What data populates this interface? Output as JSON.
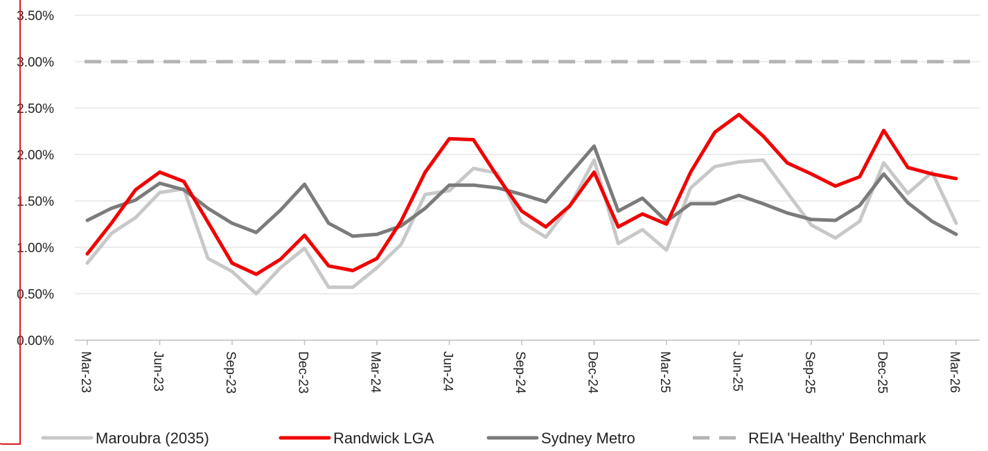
{
  "chart_data": {
    "type": "line",
    "title": "",
    "xlabel": "",
    "ylabel": "",
    "ylim": [
      0,
      0.035
    ],
    "y_tick_format": "percent_2dp",
    "y_ticks": [
      0,
      0.005,
      0.01,
      0.015,
      0.02,
      0.025,
      0.03,
      0.035
    ],
    "y_tick_labels": [
      "0.00%",
      "0.50%",
      "1.00%",
      "1.50%",
      "2.00%",
      "2.50%",
      "3.00%",
      "3.50%"
    ],
    "gridlines": true,
    "legend_position": "bottom",
    "categories": [
      "Mar-23",
      "Apr-23",
      "May-23",
      "Jun-23",
      "Jul-23",
      "Aug-23",
      "Sep-23",
      "Oct-23",
      "Nov-23",
      "Dec-23",
      "Jan-24",
      "Feb-24",
      "Mar-24",
      "Apr-24",
      "May-24",
      "Jun-24",
      "Jul-24",
      "Aug-24",
      "Sep-24",
      "Oct-24",
      "Nov-24",
      "Dec-24",
      "Jan-25",
      "Feb-25",
      "Mar-25",
      "Apr-25",
      "May-25",
      "Jun-25",
      "Jul-25",
      "Aug-25",
      "Sep-25",
      "Oct-25",
      "Nov-25",
      "Dec-25",
      "Jan-26",
      "Feb-26",
      "Mar-26"
    ],
    "x_tick_labels": [
      "Mar-23",
      "Jun-23",
      "Sep-23",
      "Dec-23",
      "Mar-24",
      "Jun-24",
      "Sep-24",
      "Dec-24",
      "Mar-25",
      "Jun-25",
      "Sep-25",
      "Dec-25",
      "Mar-26"
    ],
    "series": [
      {
        "name": "Maroubra (2035)",
        "color": "#c8c8c8",
        "style": "solid",
        "values": [
          0.0083,
          0.0115,
          0.0132,
          0.0159,
          0.0163,
          0.0088,
          0.0074,
          0.005,
          0.0078,
          0.0099,
          0.0057,
          0.0057,
          0.0078,
          0.0103,
          0.0157,
          0.0161,
          0.0185,
          0.018,
          0.0127,
          0.0111,
          0.0145,
          0.0194,
          0.0104,
          0.0119,
          0.0097,
          0.0164,
          0.0187,
          0.0192,
          0.0194,
          0.0159,
          0.0124,
          0.011,
          0.0128,
          0.0191,
          0.0158,
          0.0181,
          0.0126
        ]
      },
      {
        "name": "Randwick LGA",
        "color": "#f00000",
        "style": "solid",
        "values": [
          0.0093,
          0.0126,
          0.0162,
          0.0181,
          0.0171,
          0.0127,
          0.0083,
          0.0071,
          0.0087,
          0.0113,
          0.008,
          0.0075,
          0.0088,
          0.0128,
          0.0181,
          0.0217,
          0.0216,
          0.0176,
          0.0139,
          0.0122,
          0.0145,
          0.0181,
          0.0122,
          0.0136,
          0.0125,
          0.0181,
          0.0224,
          0.0243,
          0.022,
          0.0191,
          0.0179,
          0.0166,
          0.0176,
          0.0226,
          0.0186,
          0.0179,
          0.0174
        ]
      },
      {
        "name": "Sydney Metro",
        "color": "#7b7b7b",
        "style": "solid",
        "values": [
          0.0129,
          0.0142,
          0.0151,
          0.0169,
          0.0162,
          0.0142,
          0.0126,
          0.0116,
          0.014,
          0.0168,
          0.0126,
          0.0112,
          0.0114,
          0.0123,
          0.0142,
          0.0167,
          0.0167,
          0.0164,
          0.0157,
          0.0149,
          0.0179,
          0.0209,
          0.0139,
          0.0153,
          0.0128,
          0.0147,
          0.0147,
          0.0156,
          0.0147,
          0.0137,
          0.013,
          0.0129,
          0.0145,
          0.0179,
          0.0148,
          0.0128,
          0.0114
        ]
      },
      {
        "name": "REIA 'Healthy' Benchmark",
        "color": "#b4b4b4",
        "style": "dashed",
        "values": [
          0.03,
          0.03,
          0.03,
          0.03,
          0.03,
          0.03,
          0.03,
          0.03,
          0.03,
          0.03,
          0.03,
          0.03,
          0.03,
          0.03,
          0.03,
          0.03,
          0.03,
          0.03,
          0.03,
          0.03,
          0.03,
          0.03,
          0.03,
          0.03,
          0.03,
          0.03,
          0.03,
          0.03,
          0.03,
          0.03,
          0.03,
          0.03,
          0.03,
          0.03,
          0.03,
          0.03,
          0.03
        ]
      }
    ]
  }
}
